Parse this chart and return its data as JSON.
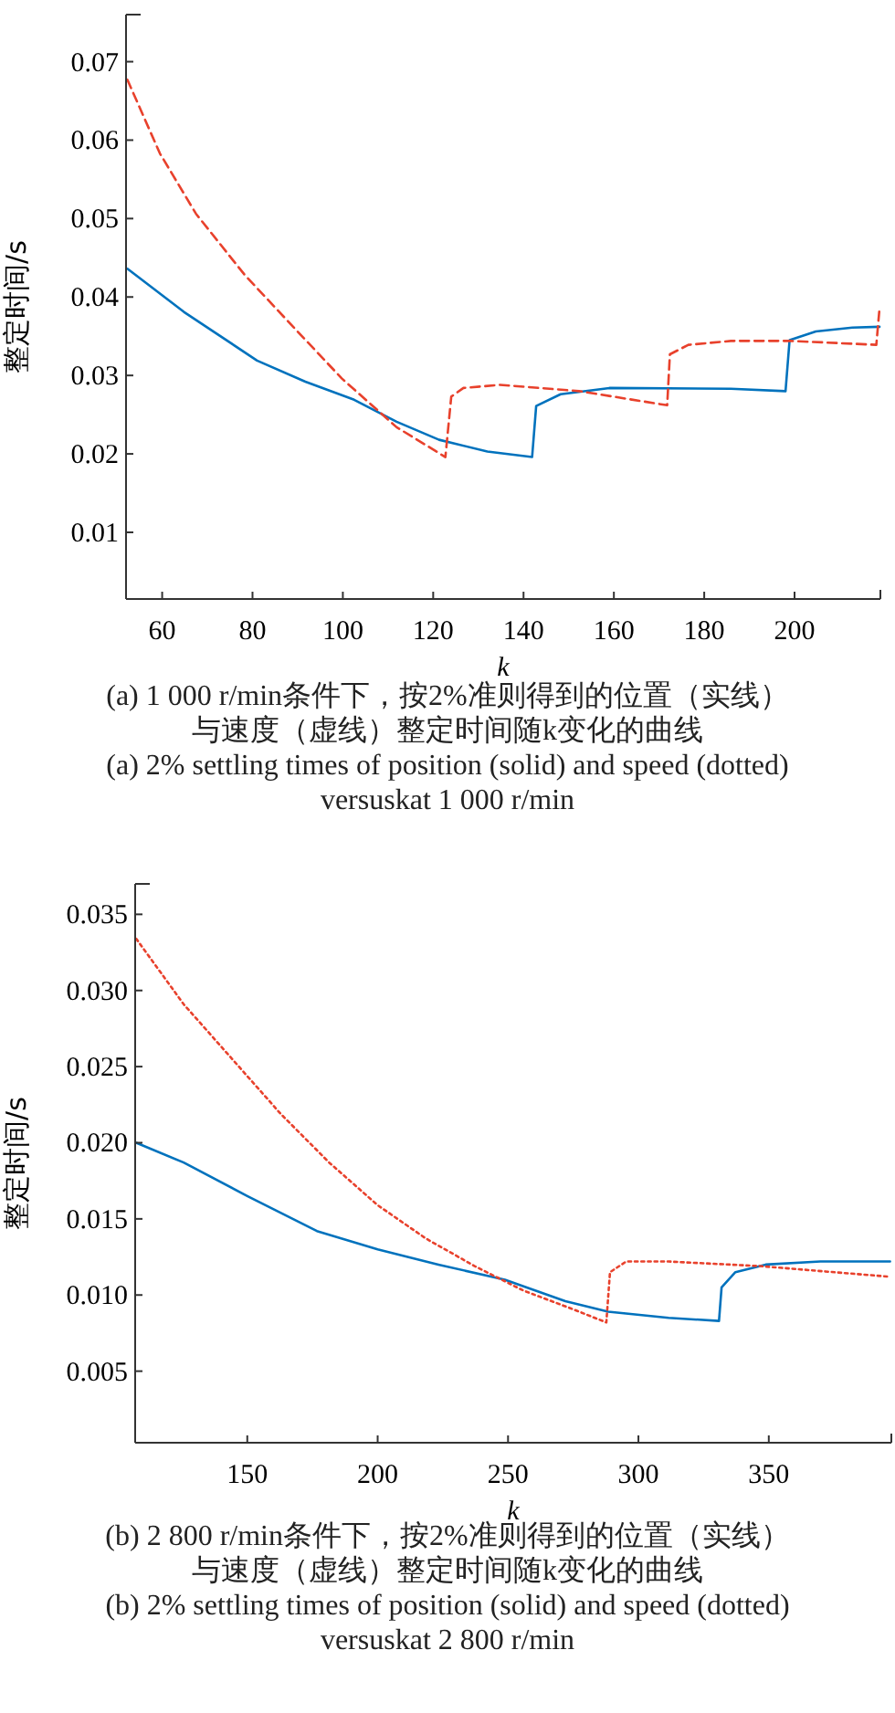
{
  "chart_data": [
    {
      "type": "line",
      "annotations": [
        "(a) 1 000 r/min条件下，按2%准则得到的位置（实线）",
        "与速度（虚线）整定时间随k变化的曲线",
        "(a) 2% settling times of position (solid) and speed (dotted) versuskat 1 000 r/min"
      ],
      "xlabel": "k",
      "ylabel": "整定时间/s",
      "xlim": [
        52,
        219
      ],
      "ylim": [
        0.0015,
        0.076
      ],
      "xticks": [
        60,
        80,
        100,
        120,
        140,
        160,
        180,
        200
      ],
      "yticks": [
        0.01,
        0.02,
        0.03,
        0.04,
        0.05,
        0.06,
        0.07
      ],
      "grid": false,
      "marker": "none",
      "series": [
        {
          "color": "#0072bd",
          "line_style": "solid",
          "x": [
            52.3,
            64.8,
            81,
            91.7,
            102.5,
            111.9,
            121.3,
            132,
            141.9,
            142.8,
            148.2,
            159,
            185.9,
            198,
            198.9,
            204.7,
            212.8,
            218.8
          ],
          "values": [
            0.0436,
            0.0381,
            0.0319,
            0.0292,
            0.0269,
            0.0241,
            0.0218,
            0.0203,
            0.0196,
            0.0261,
            0.0276,
            0.0284,
            0.0283,
            0.028,
            0.0345,
            0.0356,
            0.0361,
            0.0362
          ]
        },
        {
          "color": "#e8412c",
          "line_style": "dashed",
          "x": [
            52.3,
            59.5,
            67.5,
            78.3,
            89,
            99.8,
            111.9,
            122.7,
            124,
            126.7,
            134.8,
            152.3,
            171.8,
            172.4,
            176.5,
            185.9,
            199.3,
            218.1,
            218.8
          ],
          "values": [
            0.0677,
            0.0583,
            0.0506,
            0.0428,
            0.0362,
            0.0296,
            0.0234,
            0.0196,
            0.0273,
            0.0284,
            0.0288,
            0.028,
            0.0262,
            0.0327,
            0.0339,
            0.0344,
            0.0344,
            0.0339,
            0.0385
          ]
        }
      ]
    },
    {
      "type": "line",
      "annotations": [
        "(b) 2 800 r/min条件下，按2%准则得到的位置（实线）",
        "与速度（虚线）整定时间随k变化的曲线",
        "(b) 2% settling times of position (solid) and speed (dotted) versuskat 2 800 r/min"
      ],
      "xlabel": "k",
      "ylabel": "整定时间/s",
      "xlim": [
        107,
        397
      ],
      "ylim": [
        0.0003,
        0.037
      ],
      "xticks": [
        150,
        200,
        250,
        300,
        350
      ],
      "yticks": [
        0.005,
        {
          "value": 0.01,
          "label": "0.010"
        },
        0.015,
        {
          "value": 0.02,
          "label": "0.020"
        },
        0.025,
        {
          "value": 0.03,
          "label": "0.030"
        },
        0.035
      ],
      "grid": false,
      "marker": "none",
      "series": [
        {
          "color": "#0072bd",
          "line_style": "solid",
          "x": [
            107.4,
            125.6,
            150,
            176.7,
            200,
            223.3,
            248.8,
            272,
            288.4,
            311.6,
            330.9,
            331.9,
            337.2,
            348.8,
            369.8,
            396.5
          ],
          "values": [
            0.02,
            0.0187,
            0.0165,
            0.0142,
            0.013,
            0.012,
            0.011,
            0.0096,
            0.0089,
            0.0085,
            0.0083,
            0.0105,
            0.0115,
            0.012,
            0.0122,
            0.0122
          ]
        },
        {
          "color": "#e8412c",
          "line_style": "dotted",
          "x": [
            107.4,
            125.6,
            144.2,
            162.8,
            181.4,
            200,
            218.6,
            237.2,
            255.8,
            274.4,
            287.7,
            289.1,
            295.3,
            311.6,
            346.5,
            396.5
          ],
          "values": [
            0.0334,
            0.0291,
            0.0255,
            0.0219,
            0.0187,
            0.0159,
            0.0137,
            0.0119,
            0.0103,
            0.0091,
            0.0082,
            0.0115,
            0.0122,
            0.0122,
            0.0119,
            0.0112
          ]
        }
      ]
    }
  ]
}
